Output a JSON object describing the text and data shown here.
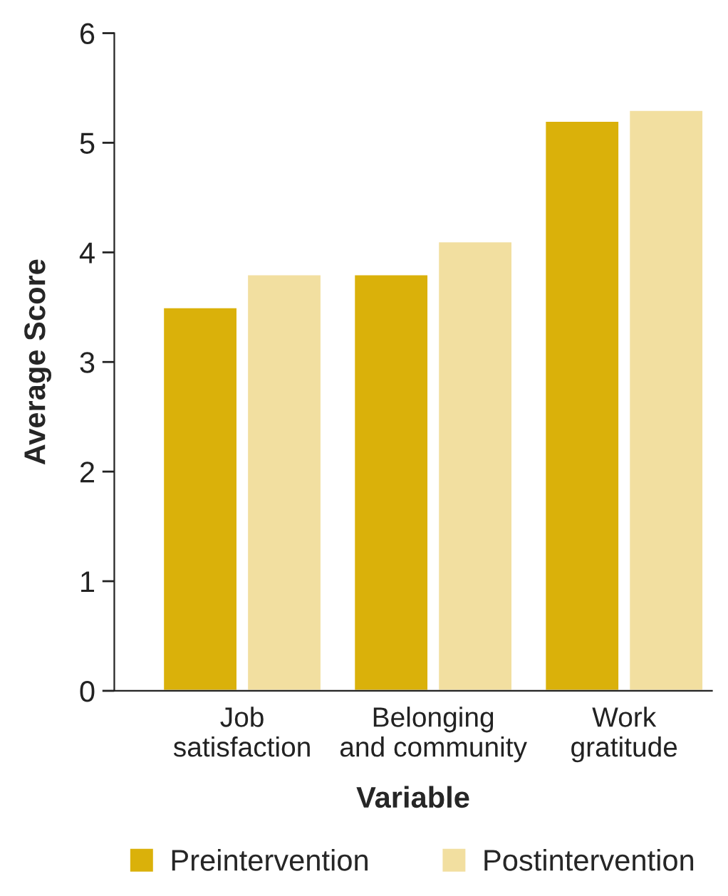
{
  "chart_data": {
    "type": "bar",
    "xlabel": "Variable",
    "ylabel": "Average Score",
    "categories": [
      "Job\nsatisfaction",
      "Belonging\nand community",
      "Work\ngratitude"
    ],
    "series": [
      {
        "name": "Preintervention",
        "color": "#dab10a",
        "values": [
          3.5,
          3.8,
          5.2
        ]
      },
      {
        "name": "Postintervention",
        "color": "#f2dfa0",
        "values": [
          3.8,
          4.1,
          5.3
        ]
      }
    ],
    "ylim": [
      0,
      6
    ],
    "yticks": [
      0,
      1,
      2,
      3,
      4,
      5,
      6
    ],
    "grid": false,
    "legend": "bottom"
  }
}
